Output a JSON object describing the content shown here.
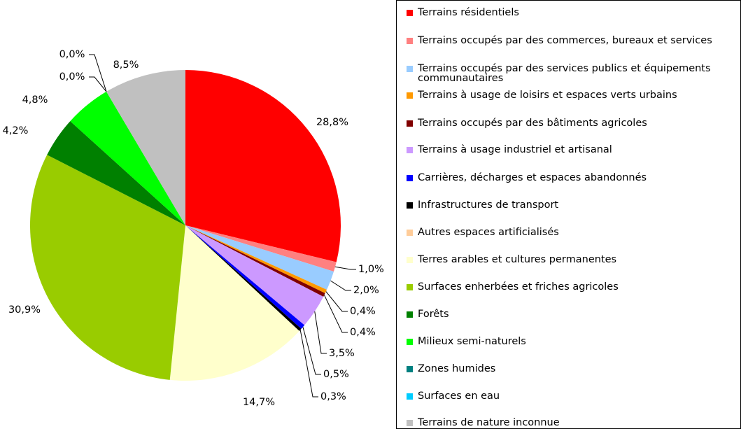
{
  "chart_data": {
    "type": "pie",
    "categories": [
      "Terrains résidentiels",
      "Terrains occupés par des commerces, bureaux et services",
      "Terrains occupés par des services publics et équipements communautaires",
      "Terrains à usage de loisirs et espaces verts urbains",
      "Terrains occupés par des bâtiments agricoles",
      "Terrains à usage industriel et artisanal",
      "Carrières, décharges et espaces abandonnés",
      "Infrastructures de transport",
      "Autres espaces artificialisés",
      "Terres arables et cultures permanentes",
      "Surfaces enherbées et friches agricoles",
      "Forêts",
      "Milieux semi-naturels",
      "Zones humides",
      "Surfaces en eau",
      "Terrains de nature inconnue"
    ],
    "values": [
      28.8,
      1.0,
      2.0,
      0.4,
      0.4,
      3.5,
      0.5,
      0.3,
      0,
      14.7,
      30.9,
      4.2,
      4.8,
      0.0,
      0.0,
      8.5
    ],
    "value_labels": [
      "28,8%",
      "1,0%",
      "2,0%",
      "0,4%",
      "0,4%",
      "3,5%",
      "0,5%",
      "0,3%",
      null,
      "14,7%",
      "30,9%",
      "4,2%",
      "4,8%",
      "0,0%",
      "0,0%",
      "8,5%"
    ],
    "colors": [
      "#ff0000",
      "#ff8080",
      "#99ccff",
      "#ff9900",
      "#800000",
      "#cc99ff",
      "#0000ff",
      "#000000",
      "#ffcc99",
      "#ffffcc",
      "#99cc00",
      "#008000",
      "#00ff00",
      "#008080",
      "#00ccff",
      "#c0c0c0"
    ],
    "legend": "right"
  }
}
